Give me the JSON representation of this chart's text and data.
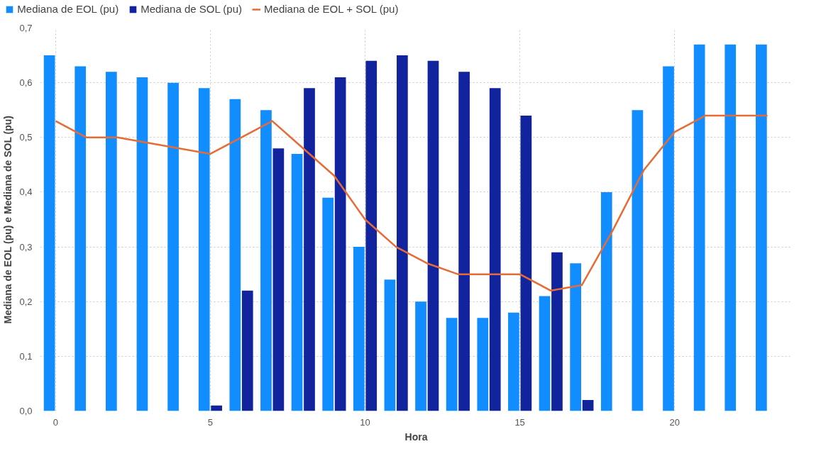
{
  "chart_data": {
    "type": "bar",
    "xlabel": "Hora",
    "ylabel": "Mediana de EOL (pu) e Mediana de SOL (pu)",
    "x": [
      0,
      1,
      2,
      3,
      4,
      5,
      6,
      7,
      8,
      9,
      10,
      11,
      12,
      13,
      14,
      15,
      16,
      17,
      18,
      19,
      20,
      21,
      22,
      23
    ],
    "series": [
      {
        "name": "Mediana de EOL (pu)",
        "color": "#118dff",
        "values": [
          0.65,
          0.63,
          0.62,
          0.61,
          0.6,
          0.59,
          0.57,
          0.55,
          0.47,
          0.39,
          0.3,
          0.24,
          0.2,
          0.17,
          0.17,
          0.18,
          0.21,
          0.27,
          0.4,
          0.55,
          0.63,
          0.67,
          0.67,
          0.67
        ]
      },
      {
        "name": "Mediana de SOL (pu)",
        "color": "#12239e",
        "values": [
          0,
          0,
          0,
          0,
          0,
          0.01,
          0.22,
          0.48,
          0.59,
          0.61,
          0.64,
          0.65,
          0.64,
          0.62,
          0.59,
          0.54,
          0.29,
          0.02,
          0,
          0,
          0,
          0,
          0,
          0
        ]
      },
      {
        "name": "Mediana de EOL + SOL (pu)",
        "color": "#e66c37",
        "type": "line",
        "values": [
          0.53,
          0.5,
          0.5,
          0.49,
          0.48,
          0.47,
          0.5,
          0.53,
          0.48,
          0.43,
          0.35,
          0.3,
          0.27,
          0.25,
          0.25,
          0.25,
          0.22,
          0.23,
          0.33,
          0.44,
          0.51,
          0.54,
          0.54,
          0.54
        ]
      }
    ],
    "xlim": [
      -0.5,
      23.8
    ],
    "xticks": [
      0,
      5,
      10,
      15,
      20
    ],
    "ylim": [
      0,
      0.7
    ],
    "yticks": [
      {
        "value": 0,
        "label": "0,0"
      },
      {
        "value": 0.1,
        "label": "0,1"
      },
      {
        "value": 0.2,
        "label": "0,2"
      },
      {
        "value": 0.3,
        "label": "0,3"
      },
      {
        "value": 0.4,
        "label": "0,4"
      },
      {
        "value": 0.5,
        "label": "0,5"
      },
      {
        "value": 0.6,
        "label": "0,6"
      },
      {
        "value": 0.7,
        "label": "0,7"
      }
    ],
    "grid": true,
    "legend": "top left",
    "line_style": "solid"
  }
}
